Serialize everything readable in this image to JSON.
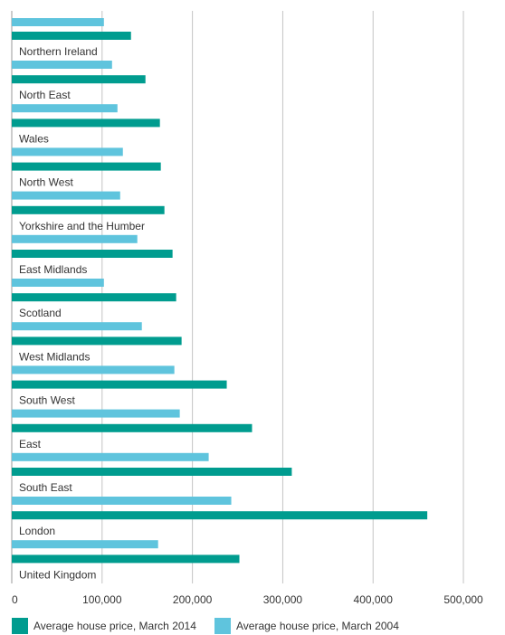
{
  "chart_data": {
    "type": "bar",
    "orientation": "horizontal",
    "categories": [
      "Northern Ireland",
      "North East",
      "Wales",
      "North West",
      "Yorkshire and the Humber",
      "East Midlands",
      "Scotland",
      "West Midlands",
      "South West",
      "East",
      "South East",
      "London",
      "United Kingdom"
    ],
    "series": [
      {
        "name": "Average house price, March 2014",
        "color": "#009c8f",
        "values": [
          132000,
          148000,
          164000,
          165000,
          169000,
          178000,
          182000,
          188000,
          238000,
          266000,
          310000,
          460000,
          252000
        ]
      },
      {
        "name": "Average house price, March 2004",
        "color": "#5fc4dd",
        "values": [
          111000,
          117000,
          123000,
          120000,
          139000,
          102000,
          144000,
          180000,
          186000,
          218000,
          243000,
          162000,
          102000
        ]
      }
    ],
    "xlim": [
      0,
      525000
    ],
    "xticks": [
      0,
      100000,
      200000,
      300000,
      400000,
      500000
    ],
    "xtick_labels": [
      "0",
      "100,000",
      "200,000",
      "300,000",
      "400,000",
      "500,000"
    ],
    "grid": "vertical",
    "legend_position": "bottom"
  }
}
